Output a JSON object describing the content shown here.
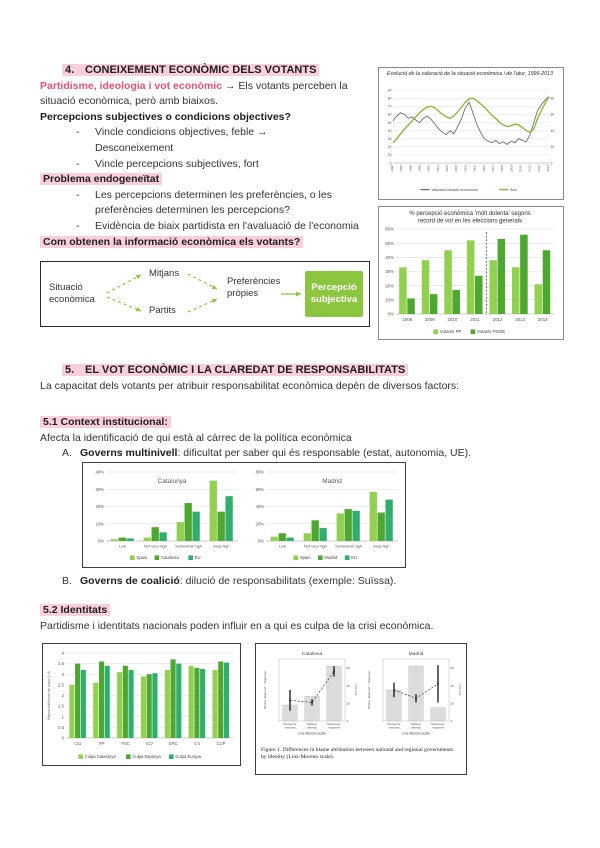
{
  "colors": {
    "highlight": "#f9cfdb",
    "accent_pink": "#f14f70",
    "green_box": "#8cc63f",
    "bar_light": "#92d050",
    "bar_dark": "#4ea72e",
    "bar_teal": "#2fae6e"
  },
  "section4": {
    "heading_num": "4.",
    "heading_text": "CONEIXEMENT ECONÒMIC DELS VOTANTS",
    "lead_highlight": "Partidisme, ideologia i vot econòmic",
    "lead_rest": " → Els votants perceben la situació econòmica, però amb biaixos.",
    "q1": "Percepcions subjectives o condicions objectives?",
    "bullets1": [
      "Vincle condicions objectives, feble → Desconeixement",
      "Vincle percepcions subjectives, fort"
    ],
    "sub1": "Problema endogeneïtat",
    "bullets2": [
      "Les percepcions determinen les preferències, o les preferències determinen les percepcions?",
      "Evidència de biaix partidista en l'avaluació de l'economia"
    ],
    "q2": "Com obtenen la informació econòmica els votants?",
    "flow": {
      "source": "Situació econòmica",
      "mid_top": "Mitjans",
      "mid_bottom": "Partits",
      "pref": "Preferències pròpies",
      "result": "Percepció subjectiva"
    }
  },
  "section5": {
    "heading_num": "5.",
    "heading_text": "EL VOT ECONÒMIC I LA CLAREDAT DE RESPONSABILITATS",
    "intro": "La capacitat dels votants per atribuir responsabilitat econòmica depèn de diversos factors:",
    "s51_title": "5.1 Context institucional:",
    "s51_body": "Afecta la identificació de qui està al càrrec de la política econòmica",
    "itemA_num": "A.",
    "itemA_bold": "Governs multinivell",
    "itemA_rest": ": dificultat per saber qui és responsable (estat, autonomia, UE).",
    "itemB_num": "B.",
    "itemB_bold": "Governs de coalició",
    "itemB_rest": ": dilució de responsabilitats (exemple: Suïssa).",
    "s52_title": "5.2 Identitats",
    "s52_body": "Partidisme i identitats nacionals poden influir en a qui es culpa de la crisi econòmica."
  },
  "chart_data": [
    {
      "id": "economic-sentiment-line",
      "type": "line",
      "title": "Evolució de la valoració de la situació econòmica i de l'atur, 1996-2013",
      "x_ticks": [
        "1996",
        "1997",
        "1998",
        "1999",
        "2000",
        "2001",
        "2002",
        "2003",
        "2004",
        "2005",
        "2006",
        "2007",
        "2008",
        "2009",
        "2010",
        "2011",
        "2012",
        "2013"
      ],
      "ylim": [
        0,
        100
      ],
      "yticks_left": [
        0,
        10,
        20,
        30,
        40,
        50,
        60,
        70,
        80,
        90
      ],
      "yticks_right": [
        0,
        20,
        40,
        60,
        80
      ],
      "series": [
        {
          "name": "Valoració situació econòmica",
          "color": "#6e6e6e",
          "values": [
            52,
            58,
            62,
            60,
            55,
            57,
            53,
            50,
            55,
            58,
            54,
            48,
            42,
            38,
            35,
            40,
            36,
            45,
            55,
            68,
            75,
            62,
            48,
            38,
            30,
            27,
            25,
            28,
            24,
            26,
            23,
            27,
            25,
            30,
            28,
            26,
            35,
            50,
            65,
            72,
            78,
            82
          ]
        },
        {
          "name": "Atur",
          "color": "#7fba28",
          "values": [
            25,
            30,
            36,
            42,
            47,
            52,
            57,
            62,
            66,
            69,
            70,
            68,
            64,
            60,
            57,
            55,
            58,
            63,
            69,
            75,
            79,
            80,
            77,
            73,
            69,
            64,
            59,
            55,
            50,
            47,
            45,
            46,
            48,
            47,
            44,
            40,
            38,
            42,
            55,
            65,
            74,
            82
          ]
        }
      ],
      "legend_position": "bottom"
    },
    {
      "id": "perception-by-vote",
      "type": "bar",
      "title_lines": [
        "% percepció econòmica 'molt dolenta' segons",
        "record de vot en les eleccions generals"
      ],
      "categories": [
        "2008",
        "2009",
        "2010",
        "2011",
        "2012",
        "2013",
        "2014"
      ],
      "series": [
        {
          "name": "Votants PP",
          "color": "#92d050",
          "values": [
            33,
            38,
            45,
            52,
            38,
            33,
            21
          ]
        },
        {
          "name": "Votants PSOE",
          "color": "#4ea72e",
          "values": [
            11,
            14,
            17,
            27,
            53,
            56,
            45
          ]
        }
      ],
      "ylim": [
        0,
        60
      ],
      "ytick_step": 10,
      "tick_suffix": "%",
      "separator_after_index": 3,
      "grid": true,
      "legend_position": "bottom"
    },
    {
      "id": "responsibility-catalunya",
      "type": "bar",
      "inner_title": "Catalunya",
      "categories": [
        "Low",
        "Not very high",
        "Somewhat high",
        "Very high"
      ],
      "series": [
        {
          "name": "Spain",
          "color": "#92d050",
          "values": [
            1,
            2,
            11,
            35
          ]
        },
        {
          "name": "Catalonia",
          "color": "#4ea72e",
          "values": [
            2,
            8,
            22,
            17
          ]
        },
        {
          "name": "EU",
          "color": "#2fae6e",
          "values": [
            1.5,
            5,
            17,
            26
          ]
        }
      ],
      "ylim": [
        0,
        40
      ],
      "ytick_step": 10,
      "tick_suffix": "%",
      "grid": true,
      "legend_position": "bottom"
    },
    {
      "id": "responsibility-madrid",
      "type": "bar",
      "inner_title": "Madrid",
      "categories": [
        "Low",
        "Not very high",
        "Somewhat high",
        "Very high"
      ],
      "series": [
        {
          "name": "Spain",
          "color": "#92d050",
          "values": [
            5,
            9,
            32,
            57
          ]
        },
        {
          "name": "Madrid",
          "color": "#4ea72e",
          "values": [
            9,
            24,
            37,
            33
          ]
        },
        {
          "name": "EU",
          "color": "#2fae6e",
          "values": [
            4,
            15,
            35,
            48
          ]
        }
      ],
      "ylim": [
        0,
        80
      ],
      "ytick_step": 20,
      "tick_suffix": "%",
      "grid": true,
      "legend_position": "bottom"
    },
    {
      "id": "blame-by-party",
      "type": "bar",
      "categories": [
        "CiU",
        "PP",
        "PSC",
        "ICV",
        "ERC",
        "C's",
        "CUP"
      ],
      "series": [
        {
          "name": "Culpa Catalunya",
          "color": "#92d050",
          "values": [
            2.5,
            2.6,
            3.1,
            2.9,
            3.2,
            3.4,
            3.2
          ]
        },
        {
          "name": "Culpa Espanya",
          "color": "#4ea72e",
          "values": [
            3.5,
            3.6,
            3.4,
            3.0,
            3.7,
            3.3,
            3.6
          ]
        },
        {
          "name": "Culpa Europa",
          "color": "#2fae6e",
          "values": [
            3.2,
            3.4,
            3.2,
            3.05,
            3.5,
            3.25,
            3.55
          ]
        }
      ],
      "ylim": [
        0,
        4
      ],
      "ytick_step": 0.5,
      "tick_suffix": "",
      "ylabel": "Mitjana d'atribució de culpa (0-4)",
      "grid": true,
      "legend_position": "bottom"
    },
    {
      "id": "blame-identity-figure",
      "type": "panel-figure",
      "caption": "Figure 1. Differences in blame attribution between national and regional governments by identity (Linz-Moreno scale).",
      "xlabel": "Linz-Moreno scale",
      "ylabel_left": "Blame: National − Regional",
      "ylabel_right": "Percent",
      "categories": [
        "Exclusive|national",
        "Shared|identity",
        "Exclusive|regional"
      ],
      "right_ticks": [
        0,
        20,
        40,
        60
      ],
      "panels": [
        {
          "title": "Catalonia",
          "bars_percent": [
            18,
            28,
            62
          ],
          "line": [
            0.0,
            -0.1,
            1.4
          ],
          "errors": [
            0.5,
            0.15,
            0.25
          ],
          "line_range": [
            -1,
            2
          ]
        },
        {
          "title": "Madrid",
          "bars_percent": [
            35,
            62,
            15
          ],
          "line": [
            0.5,
            0.1,
            0.8
          ],
          "errors": [
            0.35,
            0.2,
            0.9
          ],
          "line_range": [
            -1,
            2
          ]
        }
      ]
    }
  ]
}
